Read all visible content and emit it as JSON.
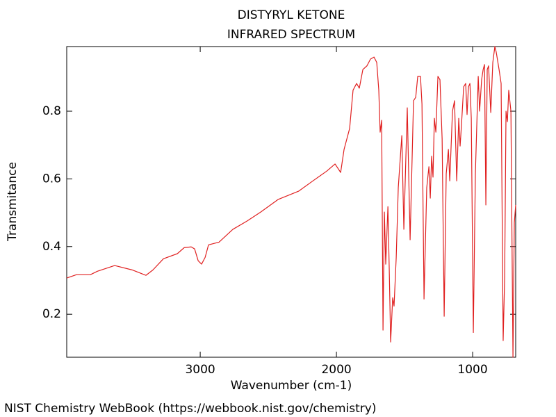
{
  "chart_data": {
    "type": "line",
    "title": "DISTYRYL KETONE",
    "subtitle": "INFRARED SPECTRUM",
    "x_label": "Wavenumber (cm-1)",
    "y_label": "Transmitance",
    "color": "#e02020",
    "xlim": [
      3980,
      684
    ],
    "ylim": [
      0.073,
      0.991
    ],
    "xticks": [
      3000,
      2000,
      1000
    ],
    "yticks": [
      0.2,
      0.4,
      0.6,
      0.8
    ],
    "x": [
      3980,
      3908,
      3806,
      3755,
      3628,
      3500,
      3398,
      3347,
      3270,
      3168,
      3117,
      3066,
      3041,
      3015,
      2990,
      2964,
      2939,
      2862,
      2760,
      2658,
      2556,
      2429,
      2276,
      2173,
      2071,
      2010,
      1969,
      1944,
      1903,
      1878,
      1852,
      1832,
      1806,
      1776,
      1750,
      1724,
      1704,
      1689,
      1679,
      1668,
      1658,
      1648,
      1638,
      1622,
      1612,
      1602,
      1587,
      1577,
      1561,
      1546,
      1520,
      1505,
      1480,
      1459,
      1434,
      1418,
      1403,
      1383,
      1372,
      1357,
      1337,
      1321,
      1311,
      1301,
      1291,
      1281,
      1270,
      1255,
      1240,
      1224,
      1209,
      1194,
      1178,
      1168,
      1148,
      1133,
      1117,
      1102,
      1092,
      1082,
      1066,
      1051,
      1041,
      1031,
      1020,
      1010,
      995,
      980,
      959,
      949,
      934,
      923,
      913,
      903,
      893,
      883,
      867,
      852,
      837,
      827,
      806,
      791,
      776,
      765,
      755,
      745,
      735,
      719,
      704,
      694,
      684
    ],
    "values": [
      0.307,
      0.317,
      0.317,
      0.327,
      0.344,
      0.331,
      0.315,
      0.331,
      0.364,
      0.379,
      0.397,
      0.399,
      0.393,
      0.358,
      0.348,
      0.368,
      0.405,
      0.413,
      0.451,
      0.475,
      0.502,
      0.539,
      0.564,
      0.594,
      0.623,
      0.644,
      0.619,
      0.687,
      0.749,
      0.862,
      0.882,
      0.868,
      0.923,
      0.934,
      0.954,
      0.96,
      0.944,
      0.862,
      0.738,
      0.773,
      0.153,
      0.502,
      0.348,
      0.518,
      0.327,
      0.118,
      0.249,
      0.224,
      0.368,
      0.574,
      0.728,
      0.451,
      0.81,
      0.42,
      0.831,
      0.841,
      0.903,
      0.903,
      0.821,
      0.245,
      0.574,
      0.636,
      0.543,
      0.667,
      0.605,
      0.779,
      0.738,
      0.903,
      0.893,
      0.718,
      0.194,
      0.615,
      0.687,
      0.594,
      0.8,
      0.831,
      0.594,
      0.779,
      0.697,
      0.759,
      0.872,
      0.882,
      0.79,
      0.872,
      0.882,
      0.779,
      0.146,
      0.615,
      0.903,
      0.8,
      0.893,
      0.923,
      0.938,
      0.523,
      0.923,
      0.934,
      0.796,
      0.944,
      0.991,
      0.975,
      0.923,
      0.882,
      0.122,
      0.307,
      0.8,
      0.769,
      0.862,
      0.8,
      0.073,
      0.471,
      0.523
    ]
  },
  "footer": "NIST Chemistry WebBook (https://webbook.nist.gov/chemistry)"
}
